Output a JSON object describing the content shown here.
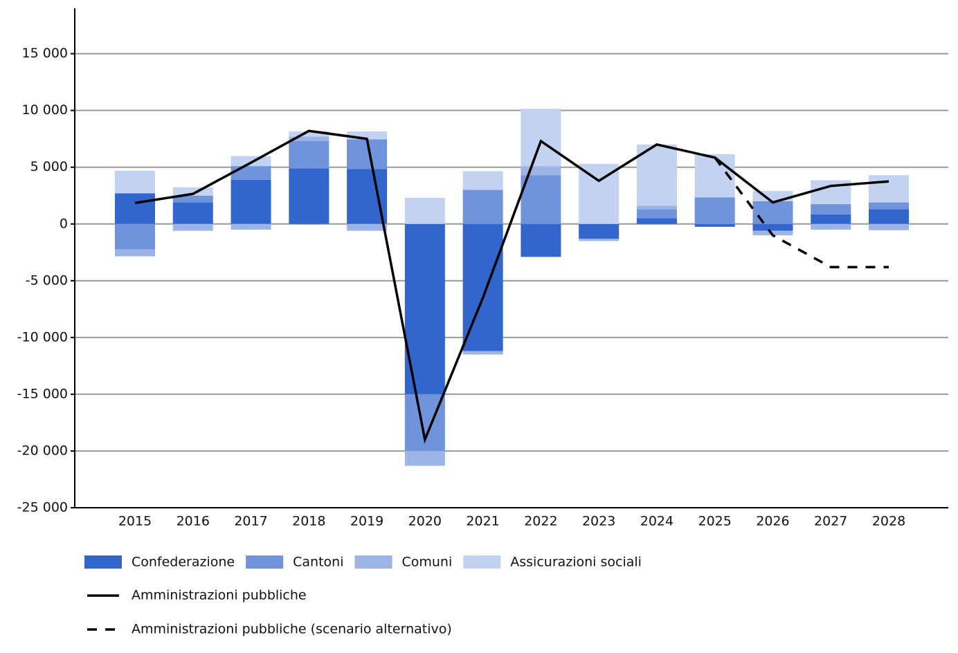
{
  "chart_data": {
    "type": "bar",
    "stacked": true,
    "categories": [
      "2015",
      "2016",
      "2017",
      "2018",
      "2019",
      "2020",
      "2021",
      "2022",
      "2023",
      "2024",
      "2025",
      "2026",
      "2027",
      "2028"
    ],
    "series": [
      {
        "name": "Confederazione",
        "color": "#3366cc",
        "values": [
          2700,
          1900,
          3900,
          4900,
          4850,
          -15000,
          -11200,
          -2900,
          -1300,
          500,
          -250,
          -600,
          850,
          1300
        ]
      },
      {
        "name": "Cantoni",
        "color": "#7094dc",
        "values": [
          -2250,
          600,
          1200,
          2400,
          2600,
          -5000,
          3000,
          4300,
          0,
          800,
          2350,
          2000,
          900,
          600
        ]
      },
      {
        "name": "Comuni",
        "color": "#9db4e6",
        "values": [
          -600,
          -600,
          -500,
          400,
          -600,
          -1300,
          -300,
          800,
          -200,
          300,
          0,
          -400,
          -500,
          -550
        ]
      },
      {
        "name": "Assicurazioni sociali",
        "color": "#c3d2f0",
        "values": [
          2000,
          730,
          880,
          450,
          700,
          2300,
          1650,
          5050,
          5300,
          5400,
          3800,
          900,
          2100,
          2400
        ]
      },
      {
        "name": "Amministrazioni pubbliche",
        "type": "line",
        "color": "#000000",
        "values": [
          1850,
          2650,
          5400,
          8200,
          7500,
          -19000,
          -6500,
          7300,
          3800,
          7000,
          5850,
          1900,
          3350,
          3750
        ]
      },
      {
        "name": "Amministrazioni pubbliche (scenario alternativo)",
        "type": "line",
        "dashed": true,
        "color": "#000000",
        "values": [
          null,
          null,
          null,
          null,
          null,
          null,
          null,
          null,
          null,
          null,
          5850,
          -1000,
          -3800,
          -3800
        ]
      }
    ],
    "ylim": [
      -25000,
      19000
    ],
    "yticks": [
      {
        "value": -25000,
        "label": "-25 000"
      },
      {
        "value": -20000,
        "label": "-20 000"
      },
      {
        "value": -15000,
        "label": "-15 000"
      },
      {
        "value": -10000,
        "label": "-10 000"
      },
      {
        "value": -5000,
        "label": "-5 000"
      },
      0,
      {
        "value": 5000,
        "label": "5 000"
      },
      {
        "value": 10000,
        "label": "10 000"
      },
      {
        "value": 15000,
        "label": "15 000"
      }
    ],
    "grid": true
  }
}
